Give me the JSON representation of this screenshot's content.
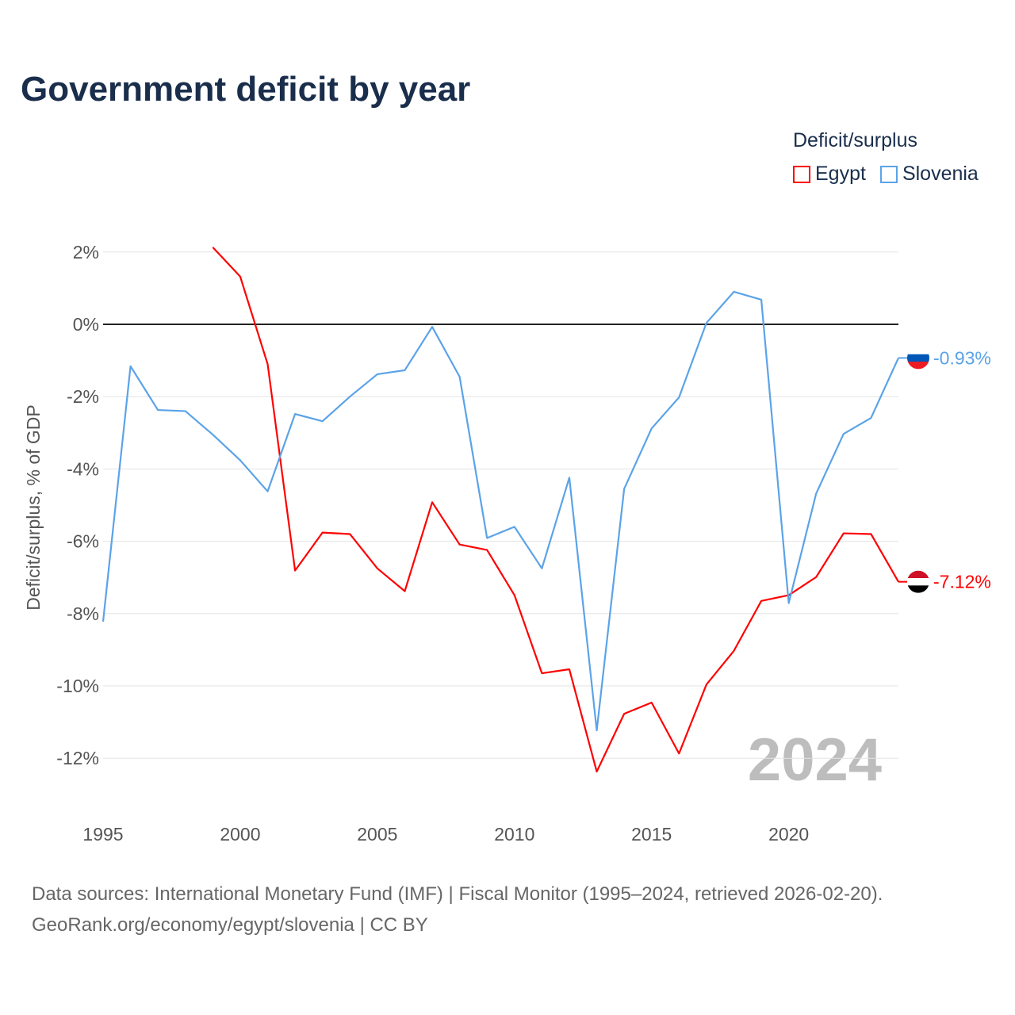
{
  "chart_data": {
    "type": "line",
    "title": "Government deficit by year",
    "xlabel": "",
    "ylabel": "Deficit/surplus, % of GDP",
    "xlim": [
      1995,
      2024
    ],
    "ylim": [
      -13,
      2.5
    ],
    "x_ticks": [
      "1995",
      "2000",
      "2005",
      "2010",
      "2015",
      "2020"
    ],
    "y_ticks": [
      {
        "v": 2,
        "label": "2%"
      },
      {
        "v": 0,
        "label": "0%"
      },
      {
        "v": -2,
        "label": "-2%"
      },
      {
        "v": -4,
        "label": "-4%"
      },
      {
        "v": -6,
        "label": "-6%"
      },
      {
        "v": -8,
        "label": "-8%"
      },
      {
        "v": -10,
        "label": "-10%"
      },
      {
        "v": -12,
        "label": "-12%"
      }
    ],
    "grid": true,
    "legend_title": "Deficit/surplus",
    "legend_position": "top-right",
    "year_watermark": "2024",
    "series": [
      {
        "name": "Egypt",
        "color": "#ff0000",
        "end_label": "-7.12%",
        "x": [
          1999,
          2000,
          2001,
          2002,
          2003,
          2004,
          2005,
          2006,
          2007,
          2008,
          2009,
          2010,
          2011,
          2012,
          2013,
          2014,
          2015,
          2016,
          2017,
          2018,
          2019,
          2020,
          2021,
          2022,
          2023,
          2024
        ],
        "values": [
          2.13,
          1.32,
          -1.1,
          -6.81,
          -5.76,
          -5.8,
          -6.75,
          -7.38,
          -4.92,
          -6.09,
          -6.24,
          -7.49,
          -9.65,
          -9.54,
          -12.37,
          -10.77,
          -10.46,
          -11.87,
          -9.96,
          -9.03,
          -7.65,
          -7.49,
          -6.99,
          -5.78,
          -5.8,
          -7.12
        ]
      },
      {
        "name": "Slovenia",
        "color": "#5ba3e8",
        "end_label": "-0.93%",
        "x": [
          1995,
          1996,
          1997,
          1998,
          1999,
          2000,
          2001,
          2002,
          2003,
          2004,
          2005,
          2006,
          2007,
          2008,
          2009,
          2010,
          2011,
          2012,
          2013,
          2014,
          2015,
          2016,
          2017,
          2018,
          2019,
          2020,
          2021,
          2022,
          2023,
          2024
        ],
        "values": [
          -8.22,
          -1.16,
          -2.37,
          -2.4,
          -3.05,
          -3.76,
          -4.62,
          -2.48,
          -2.68,
          -2.0,
          -1.38,
          -1.27,
          -0.07,
          -1.45,
          -5.91,
          -5.6,
          -6.75,
          -4.24,
          -11.23,
          -4.55,
          -2.88,
          -2.02,
          0.04,
          0.9,
          0.68,
          -7.71,
          -4.68,
          -3.03,
          -2.59,
          -0.93
        ]
      }
    ]
  },
  "source": {
    "line1": "Data sources: International Monetary Fund (IMF) | Fiscal Monitor (1995–2024, retrieved 2026-02-20).",
    "line2": "GeoRank.org/economy/egypt/slovenia | CC BY"
  }
}
